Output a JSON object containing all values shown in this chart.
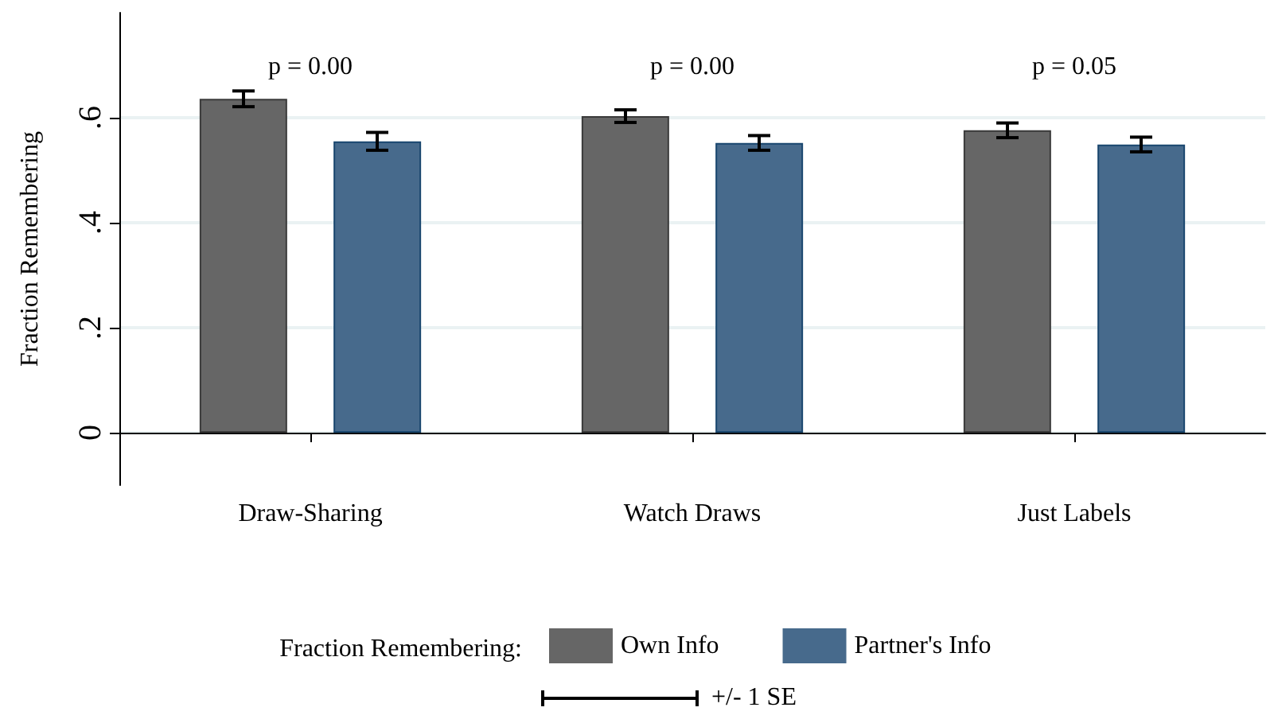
{
  "chart_data": {
    "type": "bar",
    "ylabel": "Fraction Remembering",
    "legend_title": "Fraction Remembering:",
    "categories": [
      "Draw-Sharing",
      "Watch Draws",
      "Just Labels"
    ],
    "series": [
      {
        "name": "Own Info",
        "color": "#666666",
        "values": [
          0.636,
          0.603,
          0.576
        ],
        "errors": [
          0.015,
          0.012,
          0.014
        ]
      },
      {
        "name": "Partner's Info",
        "color": "#476a8c",
        "values": [
          0.555,
          0.552,
          0.549
        ],
        "errors": [
          0.017,
          0.014,
          0.014
        ]
      }
    ],
    "ylim": [
      -0.1,
      0.8
    ],
    "yticks": [
      {
        "value": 0,
        "label": "0"
      },
      {
        "value": 0.2,
        "label": ".2"
      },
      {
        "value": 0.4,
        "label": ".4"
      },
      {
        "value": 0.6,
        "label": ".6"
      }
    ],
    "grid": "y",
    "legend": "bottom",
    "annotations": [
      "p = 0.00",
      "p = 0.00",
      "p = 0.05",
      "+/- 1 SE"
    ]
  }
}
